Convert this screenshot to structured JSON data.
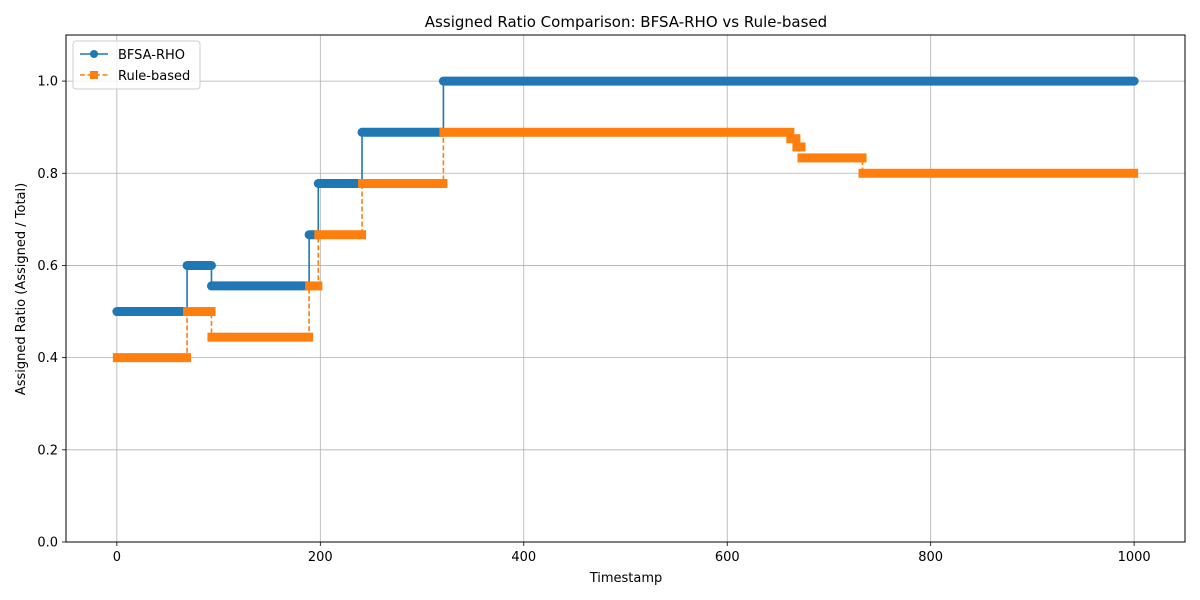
{
  "chart_data": {
    "type": "line",
    "title": "Assigned Ratio Comparison: BFSA-RHO vs Rule-based",
    "xlabel": "Timestamp",
    "ylabel": "Assigned Ratio (Assigned / Total)",
    "xlim": [
      -50,
      1050
    ],
    "ylim": [
      0,
      1.1
    ],
    "xticks": [
      0,
      200,
      400,
      600,
      800,
      1000
    ],
    "yticks": [
      0.0,
      0.2,
      0.4,
      0.6,
      0.8,
      1.0
    ],
    "xtick_labels": [
      "0",
      "200",
      "400",
      "600",
      "800",
      "1000"
    ],
    "ytick_labels": [
      "0.0",
      "0.2",
      "0.4",
      "0.6",
      "0.8",
      "1.0"
    ],
    "grid": true,
    "legend_position": "top-left",
    "series": [
      {
        "name": "BFSA-RHO",
        "color": "#1f77b4",
        "linestyle": "solid",
        "marker": "circle",
        "segments": [
          {
            "x_start": 0,
            "x_end": 69,
            "y": 0.5
          },
          {
            "x_start": 69,
            "x_end": 93,
            "y": 0.6
          },
          {
            "x_start": 93,
            "x_end": 189,
            "y": 0.5556
          },
          {
            "x_start": 189,
            "x_end": 198,
            "y": 0.6667
          },
          {
            "x_start": 198,
            "x_end": 241,
            "y": 0.7778
          },
          {
            "x_start": 241,
            "x_end": 321,
            "y": 0.8889
          },
          {
            "x_start": 321,
            "x_end": 1000,
            "y": 1.0
          }
        ]
      },
      {
        "name": "Rule-based",
        "color": "#ff7f0e",
        "linestyle": "dashed",
        "marker": "square",
        "segments": [
          {
            "x_start": 0,
            "x_end": 69,
            "y": 0.4
          },
          {
            "x_start": 69,
            "x_end": 93,
            "y": 0.5
          },
          {
            "x_start": 93,
            "x_end": 189,
            "y": 0.4444
          },
          {
            "x_start": 189,
            "x_end": 198,
            "y": 0.5556
          },
          {
            "x_start": 198,
            "x_end": 241,
            "y": 0.6667
          },
          {
            "x_start": 241,
            "x_end": 321,
            "y": 0.7778
          },
          {
            "x_start": 321,
            "x_end": 662,
            "y": 0.8889
          },
          {
            "x_start": 662,
            "x_end": 668,
            "y": 0.875
          },
          {
            "x_start": 668,
            "x_end": 673,
            "y": 0.8571
          },
          {
            "x_start": 673,
            "x_end": 733,
            "y": 0.8333
          },
          {
            "x_start": 733,
            "x_end": 1000,
            "y": 0.8
          }
        ]
      }
    ]
  }
}
